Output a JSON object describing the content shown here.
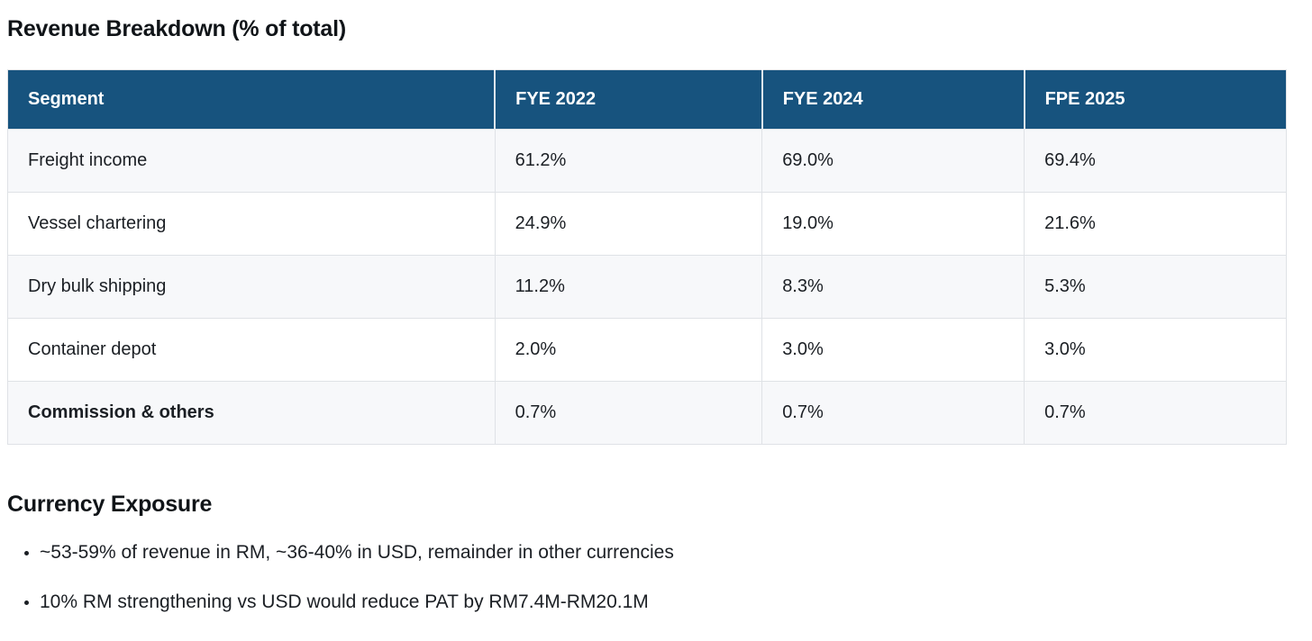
{
  "revenue_section": {
    "title": "Revenue Breakdown (% of total)",
    "table": {
      "headers": [
        "Segment",
        "FYE 2022",
        "FYE 2024",
        "FPE 2025"
      ],
      "rows": [
        [
          "Freight income",
          "61.2%",
          "69.0%",
          "69.4%"
        ],
        [
          "Vessel chartering",
          "24.9%",
          "19.0%",
          "21.6%"
        ],
        [
          "Dry bulk shipping",
          "11.2%",
          "8.3%",
          "5.3%"
        ],
        [
          "Container depot",
          "2.0%",
          "3.0%",
          "3.0%"
        ],
        [
          "Commission & others",
          "0.7%",
          "0.7%",
          "0.7%"
        ]
      ]
    }
  },
  "currency_section": {
    "heading": "Currency Exposure",
    "bullets": [
      "~53-59% of revenue in RM, ~36-40% in USD, remainder in other currencies",
      "10% RM strengthening vs USD would reduce PAT by RM7.4M-RM20.1M"
    ]
  },
  "colors": {
    "header_bg": "#17537e",
    "header_text": "#ffffff",
    "row_stripe_bg": "#f7f8fa",
    "border": "#dfe2e6",
    "text": "#1b1f24"
  }
}
